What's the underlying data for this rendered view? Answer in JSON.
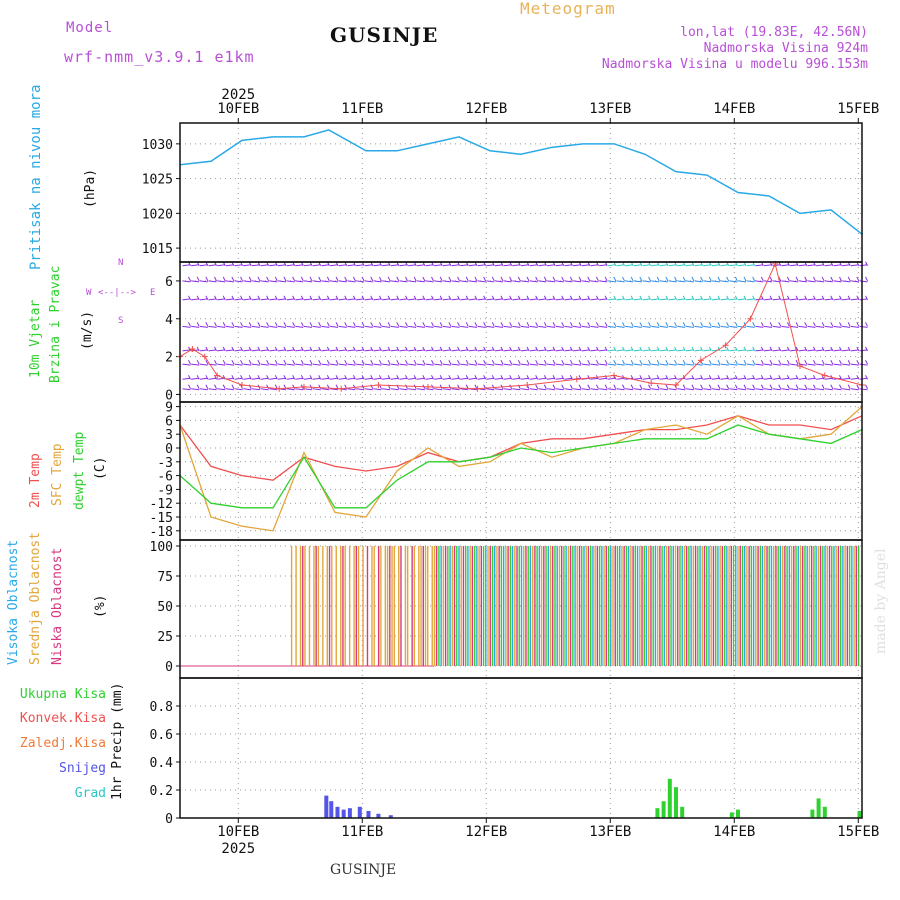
{
  "header": {
    "model_label": "Model",
    "model_name": "wrf-nmm_v3.9.1  e1km",
    "station": "GUSINJE",
    "meteogram": "Meteogram",
    "lonlat": "lon,lat (19.83E, 42.56N)",
    "altitude": "Nadmorska Visina 924m",
    "model_altitude": "Nadmorska Visina u modelu 996.153m",
    "footer_station": "GUSINJE",
    "credit": "made by Angel"
  },
  "colors": {
    "pressure": "#29a9e6",
    "t2m": "#f04f4f",
    "tsfc": "#e2a63a",
    "dewpt": "#2ed12e",
    "high_cloud": "#29a9e6",
    "mid_cloud": "#e2a63a",
    "low_cloud": "#d8387f",
    "label_purple": "#b84fd6",
    "wind_purple": "#8a2be2",
    "precip_total": "#2ed12e",
    "precip_snow": "#5454e6",
    "precip_conv": "#f04f4f"
  },
  "chart_data": [
    {
      "type": "line",
      "name": "pressure",
      "xlabel_year": "2025",
      "date_ticks": [
        "10FEB",
        "11FEB",
        "12FEB",
        "13FEB",
        "14FEB",
        "15FEB"
      ],
      "ylabel": "Pritisak na nivou mora",
      "yunit": "(hPa)",
      "yticks": [
        1015,
        1020,
        1025,
        1030
      ],
      "ylim": [
        1013,
        1033
      ],
      "grid": true,
      "x_days": [
        0.0,
        0.25,
        0.5,
        0.75,
        1.0,
        1.2,
        1.5,
        1.75,
        2.0,
        2.25,
        2.5,
        2.75,
        3.0,
        3.25,
        3.5,
        3.75,
        4.0,
        4.25,
        4.5,
        4.75,
        5.0,
        5.25,
        5.5
      ],
      "values": [
        1027,
        1027.5,
        1030.5,
        1031,
        1031,
        1032,
        1029,
        1029,
        1030,
        1031,
        1029,
        1028.5,
        1029.5,
        1030,
        1030,
        1028.5,
        1026,
        1025.5,
        1023,
        1022.5,
        1020,
        1020.5,
        1017
      ]
    },
    {
      "type": "line",
      "name": "wind",
      "ylabel": "10m Vjetar",
      "ylabel2": "Brzina i Pravac",
      "yunit": "(m/s)",
      "compass": [
        "N",
        "W",
        "E",
        "S"
      ],
      "yticks": [
        0,
        2,
        4,
        6
      ],
      "ylim": [
        -0.4,
        7.0
      ],
      "grid": true,
      "barb_levels": [
        0.3,
        0.8,
        1.6,
        2.3,
        3.6,
        5.0,
        6.0,
        6.8
      ],
      "speed_x_days": [
        0.0,
        0.1,
        0.2,
        0.3,
        0.5,
        0.8,
        1.0,
        1.3,
        1.6,
        2.0,
        2.4,
        2.8,
        3.2,
        3.5,
        3.8,
        4.0,
        4.2,
        4.4,
        4.6,
        4.8,
        5.0,
        5.2,
        5.5
      ],
      "speed_values": [
        2.0,
        2.4,
        2.0,
        1.0,
        0.5,
        0.3,
        0.4,
        0.3,
        0.5,
        0.4,
        0.3,
        0.5,
        0.8,
        1.0,
        0.6,
        0.5,
        1.8,
        2.6,
        4.0,
        7.0,
        1.5,
        1.0,
        0.5
      ]
    },
    {
      "type": "line",
      "name": "temperature",
      "ylabel_t2m": "2m Temp",
      "ylabel_sfc": "SFC Temp",
      "ylabel_dew": "dewpt Temp",
      "yunit": "(C)",
      "yticks": [
        9,
        6,
        3,
        0,
        -3,
        -6,
        -9,
        -12,
        -15,
        -18
      ],
      "ylim": [
        -20,
        10
      ],
      "grid": true,
      "x_days": [
        0.0,
        0.25,
        0.5,
        0.75,
        1.0,
        1.25,
        1.5,
        1.75,
        2.0,
        2.25,
        2.5,
        2.75,
        3.0,
        3.25,
        3.5,
        3.75,
        4.0,
        4.25,
        4.5,
        4.75,
        5.0,
        5.25,
        5.5
      ],
      "series": [
        {
          "name": "2m Temp",
          "values": [
            5,
            -4,
            -6,
            -7,
            -2,
            -4,
            -5,
            -4,
            -1,
            -3,
            -2,
            1,
            2,
            2,
            3,
            4,
            4,
            5,
            7,
            5,
            5,
            4,
            7
          ]
        },
        {
          "name": "SFC Temp",
          "values": [
            5,
            -15,
            -17,
            -18,
            -1,
            -14,
            -15,
            -5,
            0,
            -4,
            -3,
            1,
            -2,
            0,
            1,
            4,
            5,
            3,
            7,
            3,
            2,
            3,
            9
          ]
        },
        {
          "name": "dewpt Temp",
          "values": [
            -6,
            -12,
            -13,
            -13,
            -2,
            -13,
            -13,
            -7,
            -3,
            -3,
            -2,
            0,
            -1,
            0,
            1,
            2,
            2,
            2,
            5,
            3,
            2,
            1,
            4
          ]
        }
      ]
    },
    {
      "type": "bar",
      "name": "cloud",
      "ylabel_high": "Visoka Oblacnost",
      "ylabel_mid": "Srednja Oblacnost",
      "ylabel_low": "Niska  Oblacnost",
      "yunit": "(%)",
      "yticks": [
        0,
        25,
        50,
        75,
        100
      ],
      "ylim": [
        -10,
        105
      ],
      "grid": true,
      "high_start_day": 2.05,
      "mid_start_day": 0.9,
      "low_start_day": 1.5,
      "level_percent": 100
    },
    {
      "type": "bar",
      "name": "precip",
      "ylabel": "1hr Precip (mm)",
      "yticks": [
        0,
        0.2,
        0.4,
        0.6,
        0.8
      ],
      "ylim": [
        0,
        1.0
      ],
      "grid": true,
      "legend": [
        "Ukupna Kisa",
        "Konvek.Kisa",
        "Zaledj.Kisa",
        "Snijeg",
        "Grad"
      ],
      "bars": [
        {
          "day": 1.18,
          "value": 0.16,
          "kind": "snow"
        },
        {
          "day": 1.22,
          "value": 0.12,
          "kind": "snow"
        },
        {
          "day": 1.27,
          "value": 0.08,
          "kind": "snow"
        },
        {
          "day": 1.32,
          "value": 0.06,
          "kind": "snow"
        },
        {
          "day": 1.37,
          "value": 0.07,
          "kind": "snow"
        },
        {
          "day": 1.45,
          "value": 0.08,
          "kind": "snow"
        },
        {
          "day": 1.52,
          "value": 0.05,
          "kind": "snow"
        },
        {
          "day": 1.6,
          "value": 0.03,
          "kind": "snow"
        },
        {
          "day": 1.7,
          "value": 0.02,
          "kind": "snow"
        },
        {
          "day": 3.85,
          "value": 0.07,
          "kind": "total"
        },
        {
          "day": 3.9,
          "value": 0.12,
          "kind": "total"
        },
        {
          "day": 3.95,
          "value": 0.28,
          "kind": "total"
        },
        {
          "day": 4.0,
          "value": 0.22,
          "kind": "total"
        },
        {
          "day": 4.05,
          "value": 0.08,
          "kind": "total"
        },
        {
          "day": 4.45,
          "value": 0.04,
          "kind": "total"
        },
        {
          "day": 4.5,
          "value": 0.06,
          "kind": "total"
        },
        {
          "day": 5.1,
          "value": 0.06,
          "kind": "total"
        },
        {
          "day": 5.15,
          "value": 0.14,
          "kind": "total"
        },
        {
          "day": 5.2,
          "value": 0.08,
          "kind": "total"
        },
        {
          "day": 5.48,
          "value": 0.05,
          "kind": "total"
        }
      ]
    }
  ]
}
